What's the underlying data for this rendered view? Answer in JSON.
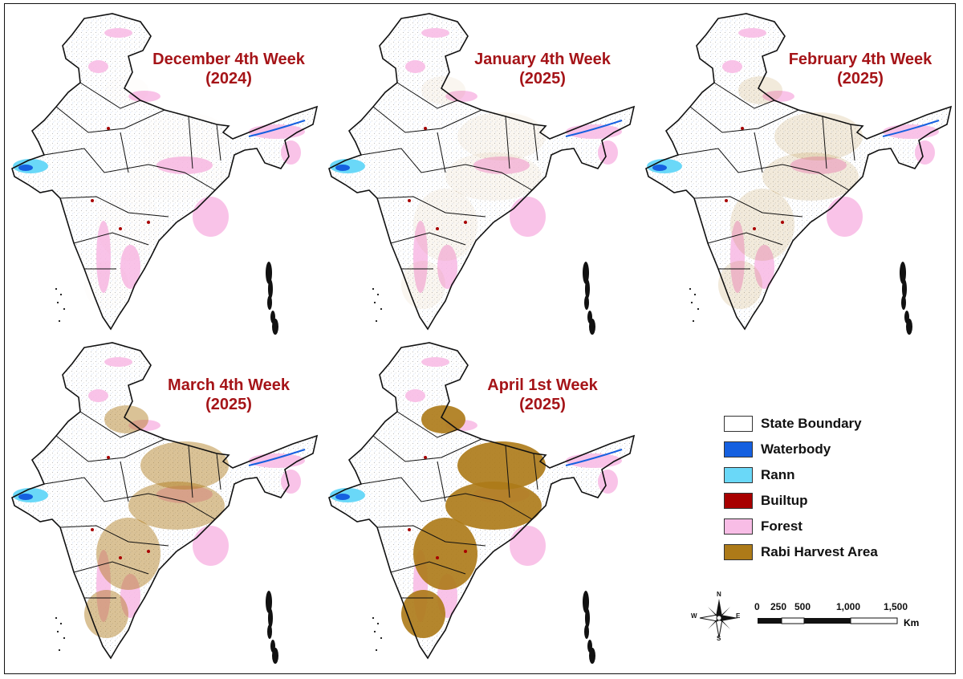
{
  "panels": [
    {
      "id": "dec",
      "line1": "December 4th Week",
      "line2": "(2024)",
      "harvest_level": 0.01
    },
    {
      "id": "jan",
      "line1": "January 4th Week",
      "line2": "(2025)",
      "harvest_level": 0.05
    },
    {
      "id": "feb",
      "line1": "February 4th Week",
      "line2": "(2025)",
      "harvest_level": 0.12
    },
    {
      "id": "mar",
      "line1": "March 4th Week",
      "line2": "(2025)",
      "harvest_level": 0.35
    },
    {
      "id": "apr",
      "line1": "April 1st Week",
      "line2": "(2025)",
      "harvest_level": 0.7
    }
  ],
  "legend": [
    {
      "label": "State Boundary",
      "color": "#ffffff"
    },
    {
      "label": "Waterbody",
      "color": "#1560e0"
    },
    {
      "label": "Rann",
      "color": "#6ad8f8"
    },
    {
      "label": "Builtup",
      "color": "#a80000"
    },
    {
      "label": "Forest",
      "color": "#f8bde6"
    },
    {
      "label": "Rabi Harvest Area",
      "color": "#ad7a18"
    }
  ],
  "compass": {
    "n": "N",
    "s": "S",
    "e": "E",
    "w": "W"
  },
  "scale_bar": {
    "ticks": [
      "0",
      "250",
      "500",
      "1,000",
      "1,500"
    ],
    "unit": "Km"
  },
  "colors": {
    "title": "#a51418",
    "outline": "#111111",
    "forest": "#f8bde6",
    "harvest": "#ad7a18",
    "water": "#1560e0",
    "rann": "#6ad8f8",
    "builtup": "#a80000"
  }
}
